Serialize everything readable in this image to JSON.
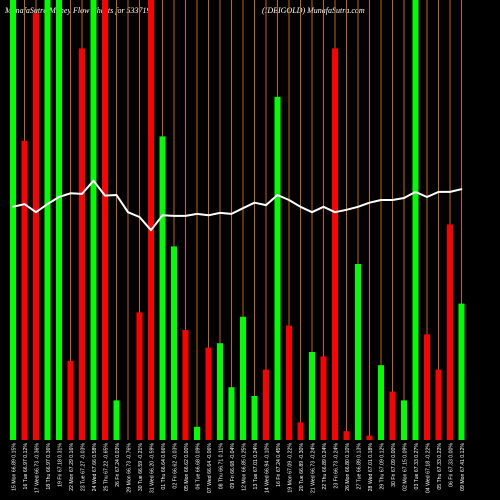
{
  "colors": {
    "background": "#000000",
    "up": "#00ff00",
    "down": "#ff0000",
    "grid": "#c86400",
    "price_line": "#ffffff",
    "text": "#ffffff"
  },
  "chart_data": {
    "type": "bar",
    "title": "MunafaSutra Money Flow Charts for 533719",
    "subtitle": "(IDBIGOLD) MunafaSutra.com",
    "xlabel": "",
    "ylabel": "",
    "grid": "vertical",
    "categories": [
      "15 Mon 66.89 0.15%",
      "16 Tue 66.97 0.12%",
      "17 Wed 66.73 -0.36%",
      "18 Thu 66.97 0.36%",
      "19 Fri 67.18 0.31%",
      "22 Mon 67.29 0.16%",
      "23 Tue 67.27 -0.03%",
      "24 Wed 67.66 0.58%",
      "25 Thu 67.22 -0.65%",
      "26 Fri 67.24 0.03%",
      "29 Mon 66.73 -0.76%",
      "30 Tue 66.59 -0.21%",
      "31 Wed 66.20 -0.59%",
      "01 Thu 66.64 0.66%",
      "02 Fri 66.62 -0.03%",
      "05 Mon 66.62 0.00%",
      "06 Tue 66.68 0.09%",
      "07 Wed 66.64 -0.06%",
      "08 Thu 66.71 0.11%",
      "09 Fri 66.68 -0.04%",
      "12 Mon 66.85 0.25%",
      "13 Tue 67.01 0.24%",
      "14 Wed 66.94 -0.10%",
      "16 Fri 67.24 0.45%",
      "19 Mon 67.09 -0.22%",
      "20 Tue 66.89 -0.30%",
      "21 Wed 66.73 -0.24%",
      "22 Thu 66.89 0.24%",
      "23 Fri 66.73 -0.24%",
      "26 Mon 66.80 0.10%",
      "27 Tue 66.89 0.13%",
      "28 Wed 67.01 0.18%",
      "29 Thu 67.09 0.12%",
      "30 Fri 67.09 0.00%",
      "02 Mon 67.15 0.09%",
      "03 Tue 67.33 0.27%",
      "04 Wed 67.18 -0.22%",
      "05 Thu 67.33 0.22%",
      "06 Fri 67.33 0.00%",
      "09 Mon 67.41 0.12%"
    ],
    "series": [
      {
        "type": "bar",
        "values": [
          100,
          68,
          97,
          100,
          100,
          18,
          89,
          100,
          100,
          9,
          0,
          29,
          100,
          69,
          44,
          25,
          3,
          21,
          22,
          12,
          28,
          10,
          16,
          78,
          26,
          4,
          20,
          19,
          89,
          2,
          40,
          1,
          17,
          11,
          9,
          100,
          24,
          16,
          49,
          31
        ],
        "colors": [
          "#00ff00",
          "#ff0000",
          "#ff0000",
          "#00ff00",
          "#00ff00",
          "#ff0000",
          "#ff0000",
          "#00ff00",
          "#ff0000",
          "#00ff00",
          "",
          "#ff0000",
          "#ff0000",
          "#00ff00",
          "#00ff00",
          "#ff0000",
          "#00ff00",
          "#ff0000",
          "#00ff00",
          "#00ff00",
          "#00ff00",
          "#00ff00",
          "#ff0000",
          "#00ff00",
          "#ff0000",
          "#ff0000",
          "#00ff00",
          "#ff0000",
          "#ff0000",
          "#ff0000",
          "#00ff00",
          "#ff0000",
          "#00ff00",
          "#ff0000",
          "#00ff00",
          "#00ff00",
          "#ff0000",
          "#ff0000",
          "#ff0000",
          "#00ff00"
        ]
      },
      {
        "type": "line",
        "values": [
          66.89,
          66.97,
          66.73,
          66.97,
          67.18,
          67.29,
          67.27,
          67.66,
          67.22,
          67.24,
          66.73,
          66.59,
          66.2,
          66.64,
          66.62,
          66.62,
          66.68,
          66.64,
          66.71,
          66.68,
          66.85,
          67.01,
          66.94,
          67.24,
          67.09,
          66.89,
          66.73,
          66.89,
          66.73,
          66.8,
          66.89,
          67.01,
          67.09,
          67.09,
          67.15,
          67.33,
          67.18,
          67.33,
          67.33,
          67.41
        ]
      }
    ]
  }
}
